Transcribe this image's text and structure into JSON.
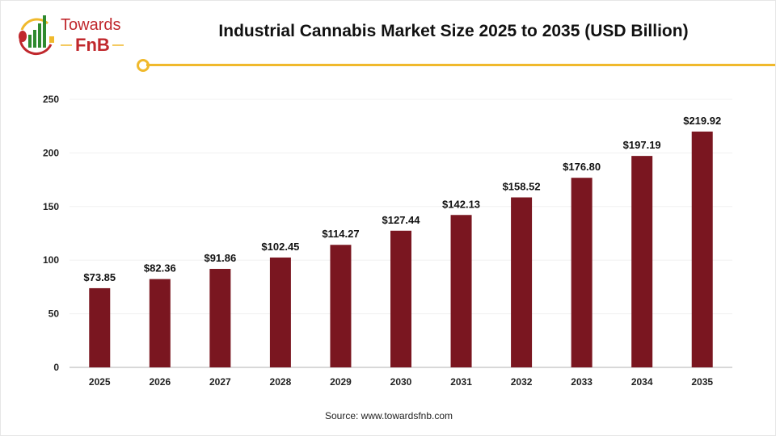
{
  "logo": {
    "line1": "Towards",
    "line2": "FnB"
  },
  "source": "Source: www.towardsfnb.com",
  "colors": {
    "bar": "#7a1620",
    "accent": "#f0b92c",
    "logo_red": "#c0282d",
    "logo_green": "#2f8a2f"
  },
  "chart_data": {
    "type": "bar",
    "title": "Industrial Cannabis Market Size 2025 to 2035 (USD Billion)",
    "categories": [
      "2025",
      "2026",
      "2027",
      "2028",
      "2029",
      "2030",
      "2031",
      "2032",
      "2033",
      "2034",
      "2035"
    ],
    "values": [
      73.85,
      82.36,
      91.86,
      102.45,
      114.27,
      127.44,
      142.13,
      158.52,
      176.8,
      197.19,
      219.92
    ],
    "data_labels": [
      "$73.85",
      "$82.36",
      "$91.86",
      "$102.45",
      "$114.27",
      "$127.44",
      "$142.13",
      "$158.52",
      "$176.80",
      "$197.19",
      "$219.92"
    ],
    "yticks": [
      "0",
      "50",
      "100",
      "150",
      "200",
      "250"
    ],
    "ylim": [
      0,
      250
    ],
    "xlabel": "",
    "ylabel": "",
    "grid": true,
    "legend": "none"
  }
}
